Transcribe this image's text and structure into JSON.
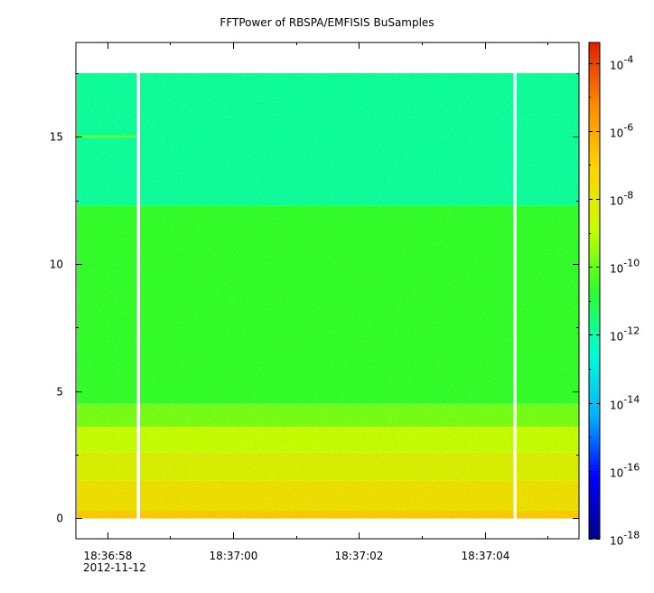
{
  "chart_data": {
    "type": "heatmap",
    "title": "FFTPower of RBSPA/EMFISIS  BuSamples",
    "xlabel": "",
    "ylabel": "",
    "x_start": "18:36:57.5",
    "x_end": "18:37:05.5",
    "x_ticks": [
      "18:36:58",
      "18:37:00",
      "18:37:02",
      "18:37:04"
    ],
    "x_date_label": "2012-11-12",
    "ylim": [
      -0.8,
      18.7
    ],
    "y_ticks": [
      0,
      5,
      10,
      15
    ],
    "data_ymax": 17.5,
    "colorbar": {
      "scale": "log",
      "range_exp": [
        -18,
        -3.4
      ],
      "tick_exps": [
        -4,
        -6,
        -8,
        -10,
        -12,
        -14,
        -16,
        -18
      ],
      "tick_base": "10",
      "colormap": [
        "#00008b",
        "#0000ff",
        "#00b4ff",
        "#00ffd5",
        "#2cff2c",
        "#c7ff00",
        "#ffd400",
        "#ff8a00",
        "#e22000"
      ]
    },
    "bands": [
      {
        "y_from": 0.0,
        "y_to": 0.3,
        "log_power": -6.8
      },
      {
        "y_from": 0.3,
        "y_to": 1.5,
        "log_power": -7.6
      },
      {
        "y_from": 1.5,
        "y_to": 2.6,
        "log_power": -8.3
      },
      {
        "y_from": 2.6,
        "y_to": 3.6,
        "log_power": -8.9
      },
      {
        "y_from": 3.6,
        "y_to": 4.5,
        "log_power": -9.8
      },
      {
        "y_from": 4.5,
        "y_to": 12.3,
        "log_power": -10.6
      },
      {
        "y_from": 12.3,
        "y_to": 17.5,
        "log_power": -11.9
      }
    ],
    "data_gaps": [
      "18:36:58.49",
      "18:37:04.48"
    ],
    "line_feature": {
      "y": 15.0,
      "x_from": "18:36:57.5",
      "x_to": "18:36:58.45",
      "log_power": -9.6
    }
  }
}
